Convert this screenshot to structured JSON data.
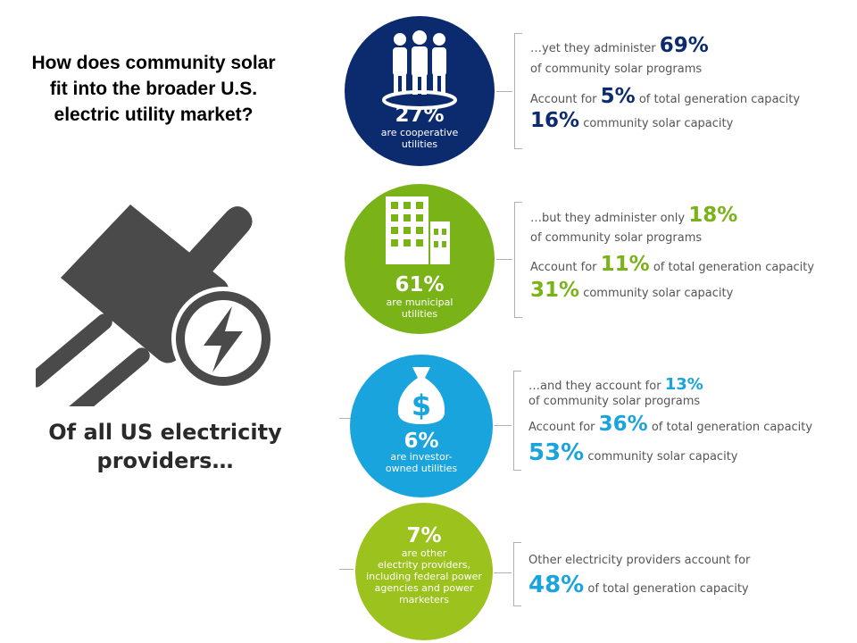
{
  "question_lines": [
    "How does community solar",
    "fit into the broader U.S.",
    "electric utility market?"
  ],
  "intro_lines": [
    "Of all US electricity",
    "providers…"
  ],
  "icons": {
    "plug": "electric-plug-icon",
    "bolt": "lightning-bolt-icon",
    "people": "people-group-icon",
    "building": "office-building-icon",
    "money": "money-bag-icon"
  },
  "colors": {
    "cooperative": "#0b2b6e",
    "municipal": "#7ab317",
    "investor": "#1aa4dd",
    "other": "#9cc21d",
    "plug": "#4a4a4a"
  },
  "chart_data": {
    "type": "table",
    "categories": [
      "Cooperative utilities",
      "Municipal utilities",
      "Investor-owned utilities",
      "Other electricity providers"
    ],
    "series": [
      {
        "values": [
          27,
          61,
          6,
          7
        ]
      },
      {
        "values": [
          69,
          18,
          13,
          null
        ]
      },
      {
        "values": [
          5,
          11,
          36,
          48
        ]
      },
      {
        "values": [
          16,
          31,
          53,
          null
        ]
      }
    ],
    "providers": [
      {
        "key": "cooperative",
        "share_of_providers": "27%",
        "desc": [
          "are cooperative",
          "utilities"
        ],
        "administer_intro": "…yet they administer",
        "administer_pct": "69%",
        "administer_tail": "of community solar programs",
        "capacity_pre": "Account for",
        "capacity_pct": "5%",
        "capacity_tail": "of total generation capacity",
        "cs_capacity_pct": "16%",
        "cs_capacity_tail": "community solar capacity"
      },
      {
        "key": "municipal",
        "share_of_providers": "61%",
        "desc": [
          "are municipal",
          "utilities"
        ],
        "administer_intro": "…but they administer only",
        "administer_pct": "18%",
        "administer_tail": "of community solar programs",
        "capacity_pre": "Account for",
        "capacity_pct": "11%",
        "capacity_tail": "of total generation capacity",
        "cs_capacity_pct": "31%",
        "cs_capacity_tail": "community solar capacity"
      },
      {
        "key": "investor",
        "share_of_providers": "6%",
        "desc": [
          "are investor-",
          "owned utilities"
        ],
        "administer_intro": "…and they account for",
        "administer_pct": "13%",
        "administer_tail": "of community solar programs",
        "capacity_pre": "Account for",
        "capacity_pct": "36%",
        "capacity_tail": "of total generation capacity",
        "cs_capacity_pct": "53%",
        "cs_capacity_tail": "community solar capacity"
      },
      {
        "key": "other",
        "share_of_providers": "7%",
        "desc": [
          "are other",
          "electrity providers,",
          "including federal power",
          "agencies and power",
          "marketers"
        ],
        "intro": "Other electricity providers account for",
        "capacity_pct": "48%",
        "capacity_tail": "of total generation capacity"
      }
    ]
  }
}
